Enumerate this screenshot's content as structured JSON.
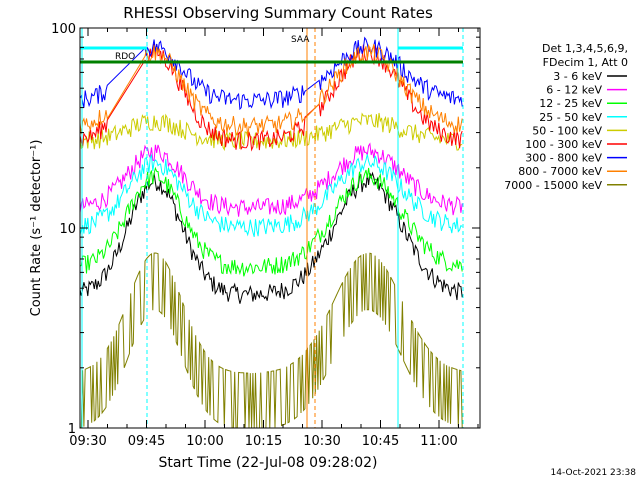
{
  "chart_data": {
    "type": "line",
    "title": "RHESSI Observing Summary Count Rates",
    "xlabel": "Start Time (22-Jul-08 09:28:02)",
    "ylabel": "Count Rate (s⁻¹ detector⁻¹)",
    "y_scale": "log",
    "ylim": [
      1,
      100
    ],
    "y_ticks": [
      "1",
      "10",
      "100"
    ],
    "x_ticks": [
      "09:30",
      "09:45",
      "10:00",
      "10:15",
      "10:30",
      "10:45",
      "11:00"
    ],
    "legend": {
      "placement": "right",
      "header": [
        "Det 1,3,4,5,6,9,",
        "FDecim 1, Att 0"
      ]
    },
    "timestamp": "14-Oct-2021 23:38",
    "annotations": [
      "RDO",
      "SAA"
    ],
    "series": [
      {
        "name": "3 - 6 keV",
        "color": "#000000",
        "baseline": 4.6,
        "peak": 17
      },
      {
        "name": "6 - 12 keV",
        "color": "#ff00ff",
        "baseline": 12.5,
        "peak": 24
      },
      {
        "name": "12 - 25 keV",
        "color": "#00ff00",
        "baseline": 6.3,
        "peak": 18
      },
      {
        "name": "25 - 50 keV",
        "color": "#00ffff",
        "baseline": 10,
        "peak": 21
      },
      {
        "name": "50 - 100 keV",
        "color": "#cccc00",
        "baseline": 27,
        "peak": 34
      },
      {
        "name": "100 - 300 keV",
        "color": "#ff0000",
        "baseline": 27,
        "peak": 75
      },
      {
        "name": "300 - 800 keV",
        "color": "#0000ff",
        "baseline": 43,
        "peak": 80
      },
      {
        "name": "800 - 7000 keV",
        "color": "#ff8000",
        "baseline": 32,
        "peak": 75
      },
      {
        "name": "7000 - 15000 keV",
        "color": "#808000",
        "baseline": 1.5,
        "peak": 6
      }
    ]
  }
}
